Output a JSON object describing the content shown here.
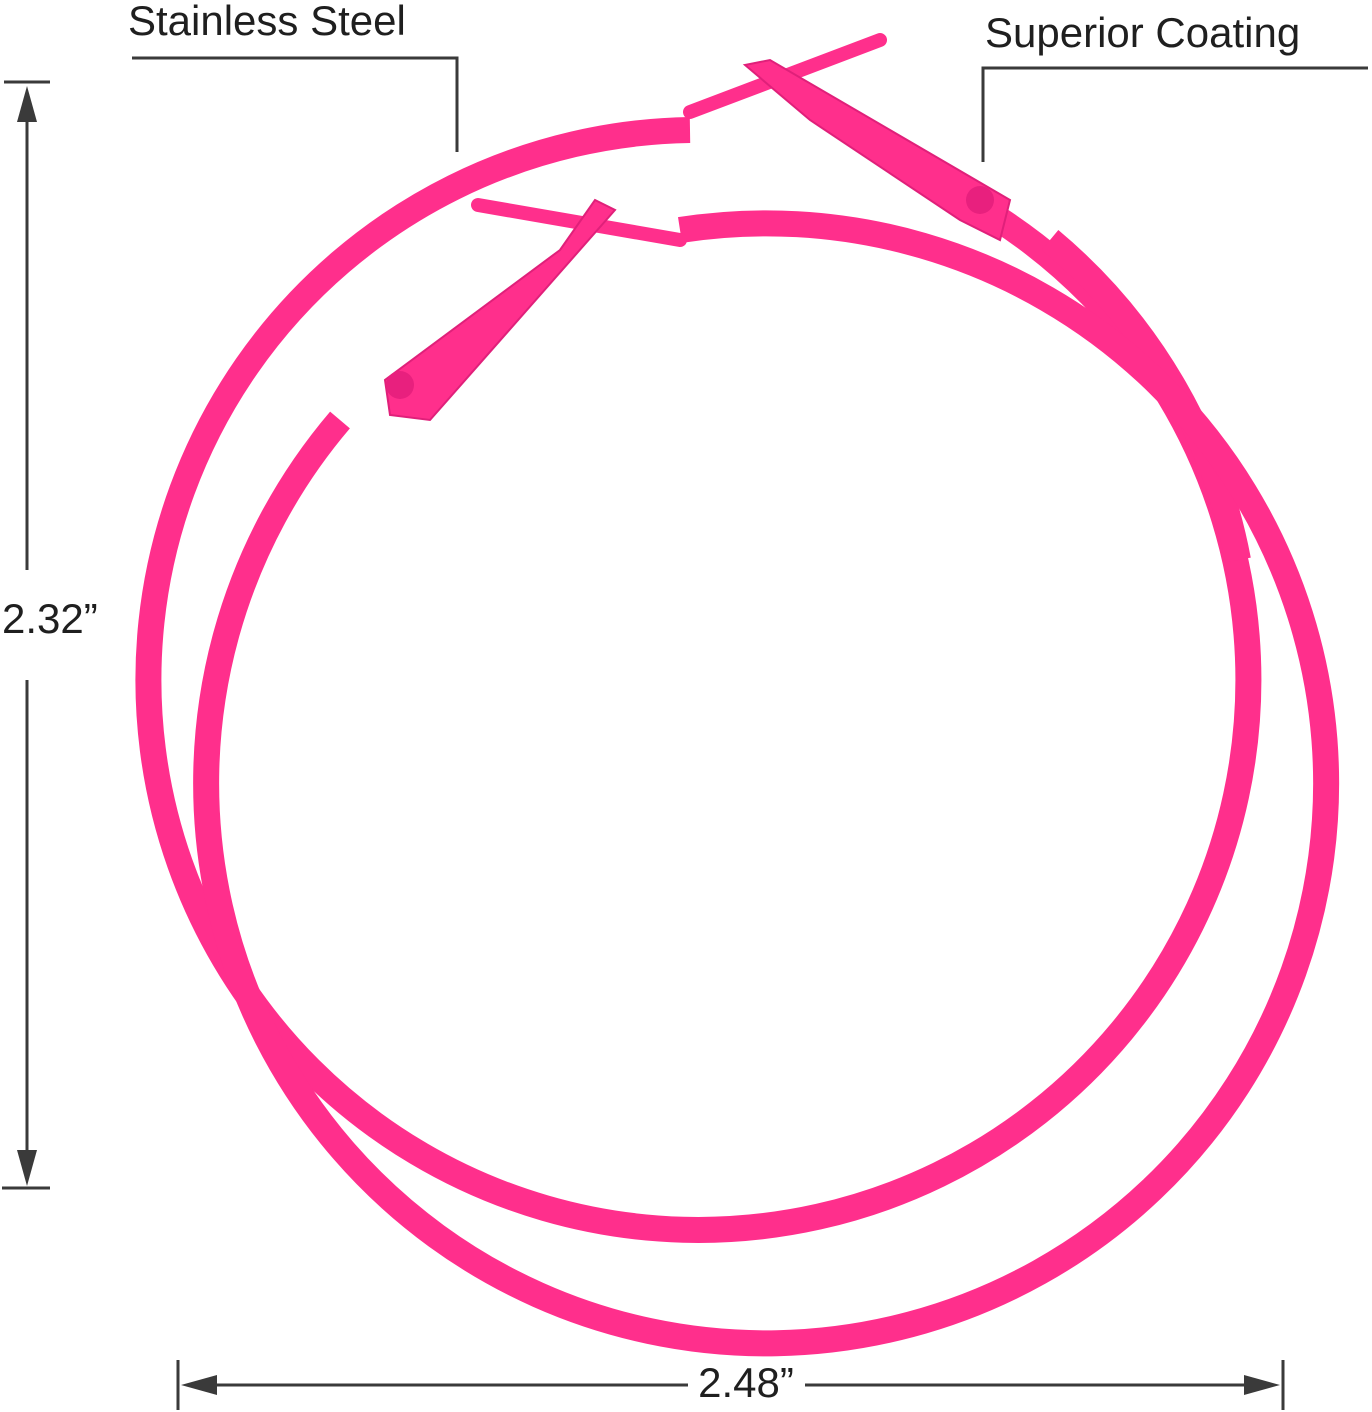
{
  "labels": {
    "material": "Stainless Steel",
    "coating": "Superior Coating"
  },
  "dimensions": {
    "height": "2.32”",
    "width": "2.48”"
  }
}
